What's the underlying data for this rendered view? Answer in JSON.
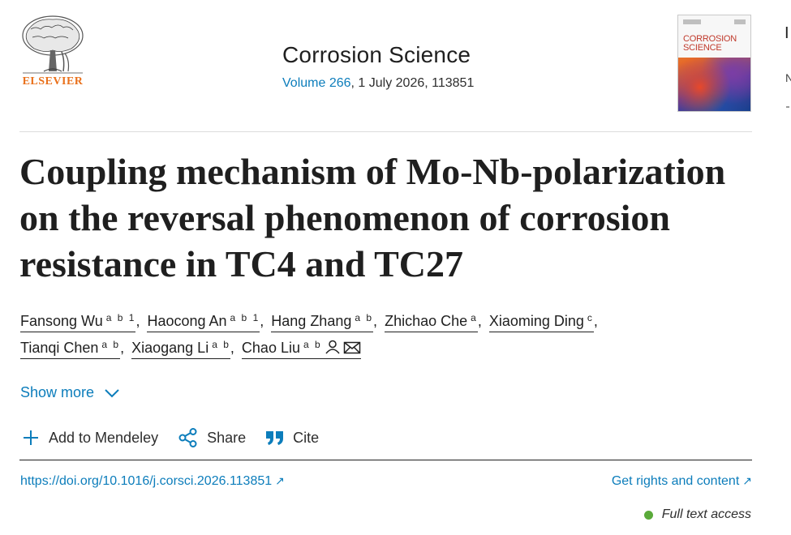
{
  "header": {
    "publisher": "ELSEVIER",
    "journal": "Corrosion Science",
    "volume_link": "Volume 266",
    "volume_rest": ", 1 July 2026, 113851",
    "cover_title_1": "CORROSION",
    "cover_title_2": "SCIENCE",
    "side_initial": "I",
    "side_initial_2": "N"
  },
  "article": {
    "title": "Coupling mechanism of Mo-Nb-polarization on the reversal phenomenon of corrosion resistance in TC4 and TC27",
    "authors": [
      {
        "name": "Fansong Wu",
        "affil": "a b 1"
      },
      {
        "name": "Haocong An",
        "affil": "a b 1"
      },
      {
        "name": "Hang Zhang",
        "affil": "a b"
      },
      {
        "name": "Zhichao Che",
        "affil": "a"
      },
      {
        "name": "Xiaoming Ding",
        "affil": "c"
      },
      {
        "name": "Tianqi Chen",
        "affil": "a b"
      },
      {
        "name": "Xiaogang Li",
        "affil": "a b"
      },
      {
        "name": "Chao Liu",
        "affil": "a b"
      }
    ]
  },
  "show_more": "Show more",
  "actions": {
    "add": "Add to Mendeley",
    "share": "Share",
    "cite": "Cite"
  },
  "links": {
    "doi": "https://doi.org/10.1016/j.corsci.2026.113851",
    "rights": "Get rights and content",
    "access": "Full text access"
  },
  "colors": {
    "link": "#0c7dbb",
    "brand_orange": "#e9711c",
    "access_green": "#5aaa3a"
  },
  "icons": {
    "person": "person-icon",
    "mail": "mail-icon",
    "chevron": "chevron-down-icon",
    "plus": "plus-icon",
    "share": "share-icon",
    "cite": "quote-icon",
    "external": "external-arrow-icon"
  }
}
